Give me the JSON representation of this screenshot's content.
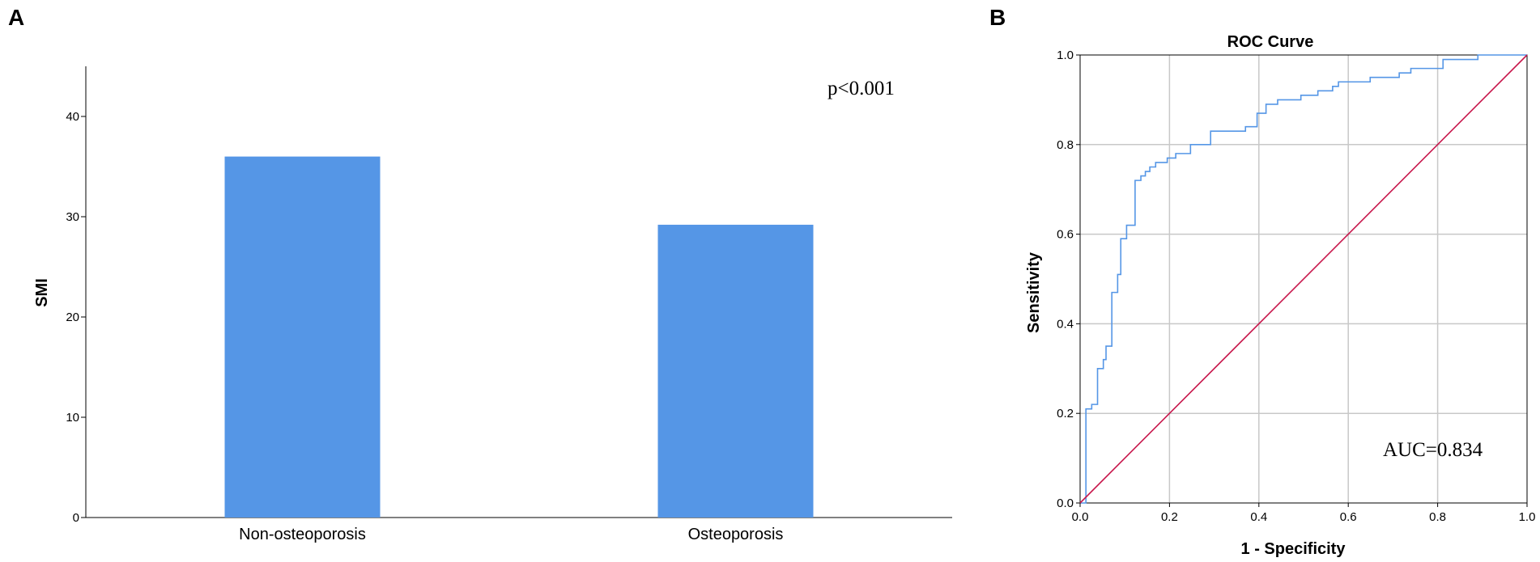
{
  "chart_data": [
    {
      "panel": "A",
      "type": "bar",
      "title": "",
      "xlabel": "",
      "ylabel": "SMI",
      "categories": [
        "Non-osteoporosis",
        "Osteoporosis"
      ],
      "values": [
        36.0,
        29.2
      ],
      "ylim": [
        0,
        45
      ],
      "yticks": [
        0,
        10,
        20,
        30,
        40
      ],
      "annotation": "p<0.001",
      "grid": false,
      "colors": {
        "bar": "#5596e6"
      }
    },
    {
      "panel": "B",
      "type": "line",
      "title": "ROC Curve",
      "xlabel": "1 - Specificity",
      "ylabel": "Sensitivity",
      "xlim": [
        0,
        1
      ],
      "ylim": [
        0,
        1
      ],
      "xticks": [
        0.0,
        0.2,
        0.4,
        0.6,
        0.8,
        1.0
      ],
      "yticks": [
        0.0,
        0.2,
        0.4,
        0.6,
        0.8,
        1.0
      ],
      "annotation": "AUC=0.834",
      "grid": true,
      "colors": {
        "curve": "#5596e6",
        "reference": "#c8174c",
        "grid": "#c8c8c8"
      },
      "series": [
        {
          "role": "roc-curve",
          "points": [
            [
              0.0,
              0.0
            ],
            [
              0.013,
              0.0
            ],
            [
              0.013,
              0.21
            ],
            [
              0.026,
              0.21
            ],
            [
              0.026,
              0.22
            ],
            [
              0.039,
              0.22
            ],
            [
              0.039,
              0.3
            ],
            [
              0.052,
              0.3
            ],
            [
              0.052,
              0.32
            ],
            [
              0.058,
              0.32
            ],
            [
              0.058,
              0.35
            ],
            [
              0.071,
              0.35
            ],
            [
              0.071,
              0.47
            ],
            [
              0.084,
              0.47
            ],
            [
              0.084,
              0.51
            ],
            [
              0.091,
              0.51
            ],
            [
              0.091,
              0.59
            ],
            [
              0.104,
              0.59
            ],
            [
              0.104,
              0.62
            ],
            [
              0.123,
              0.62
            ],
            [
              0.123,
              0.72
            ],
            [
              0.136,
              0.72
            ],
            [
              0.136,
              0.73
            ],
            [
              0.146,
              0.73
            ],
            [
              0.146,
              0.74
            ],
            [
              0.156,
              0.74
            ],
            [
              0.156,
              0.75
            ],
            [
              0.169,
              0.75
            ],
            [
              0.169,
              0.76
            ],
            [
              0.195,
              0.76
            ],
            [
              0.195,
              0.77
            ],
            [
              0.214,
              0.77
            ],
            [
              0.214,
              0.78
            ],
            [
              0.247,
              0.78
            ],
            [
              0.247,
              0.8
            ],
            [
              0.292,
              0.8
            ],
            [
              0.292,
              0.83
            ],
            [
              0.37,
              0.83
            ],
            [
              0.37,
              0.84
            ],
            [
              0.396,
              0.84
            ],
            [
              0.396,
              0.87
            ],
            [
              0.416,
              0.87
            ],
            [
              0.416,
              0.89
            ],
            [
              0.442,
              0.89
            ],
            [
              0.442,
              0.9
            ],
            [
              0.494,
              0.9
            ],
            [
              0.494,
              0.91
            ],
            [
              0.532,
              0.91
            ],
            [
              0.532,
              0.92
            ],
            [
              0.565,
              0.92
            ],
            [
              0.565,
              0.93
            ],
            [
              0.578,
              0.93
            ],
            [
              0.578,
              0.94
            ],
            [
              0.649,
              0.94
            ],
            [
              0.649,
              0.95
            ],
            [
              0.714,
              0.95
            ],
            [
              0.714,
              0.96
            ],
            [
              0.74,
              0.96
            ],
            [
              0.74,
              0.97
            ],
            [
              0.812,
              0.97
            ],
            [
              0.812,
              0.99
            ],
            [
              0.89,
              0.99
            ],
            [
              0.89,
              1.0
            ],
            [
              1.0,
              1.0
            ]
          ]
        },
        {
          "role": "reference-line",
          "points": [
            [
              0.0,
              0.0
            ],
            [
              1.0,
              1.0
            ]
          ]
        }
      ]
    }
  ]
}
